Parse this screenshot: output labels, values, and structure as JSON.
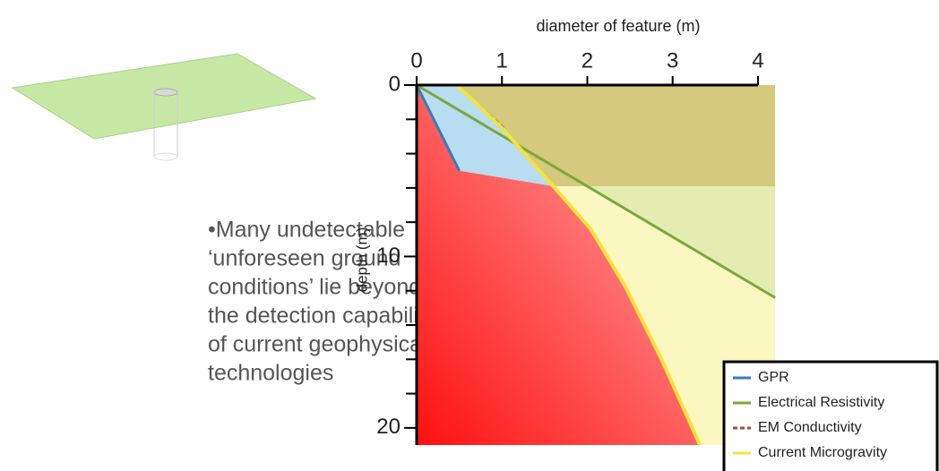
{
  "chart_data": {
    "type": "line",
    "x_label": "diameter of feature (m)",
    "y_label": "depth (m)",
    "xlim": [
      0,
      4.2
    ],
    "xticks": [
      0,
      1,
      2,
      3,
      4
    ],
    "ylim": [
      0,
      21
    ],
    "yticks": [
      0,
      10,
      20
    ],
    "yminorticks": [
      2,
      4,
      6,
      8,
      12,
      14,
      16,
      18
    ],
    "y_inverted": true,
    "x_axis_position": "top",
    "legend": "lower right",
    "series": [
      {
        "name": "GPR",
        "color": "#2f7fc1",
        "x": [
          0,
          0.5
        ],
        "values": [
          0,
          5
        ]
      },
      {
        "name": "Electrical Resistivity",
        "color": "#7aa83a",
        "x": [
          0,
          4.2
        ],
        "values": [
          0,
          12.4
        ]
      },
      {
        "name": "EM Conductivity",
        "color": "#a0522d",
        "x": [
          0.73,
          1.04
        ],
        "values": [
          1.2,
          2.6
        ]
      },
      {
        "name": "Current Microgravity",
        "color": "#f2e43a",
        "x": [
          0.47,
          1.0,
          1.6,
          2.04,
          2.45,
          2.87,
          3.32
        ],
        "values": [
          0,
          2.5,
          5.9,
          8.4,
          11.8,
          16,
          21
        ]
      }
    ]
  },
  "slide": {
    "bullet_lines": [
      "•Many undetectable",
      "‘unforeseen ground",
      "conditions’ lie beyond",
      "the detection capability",
      "of current geophysical",
      "technologies"
    ]
  }
}
